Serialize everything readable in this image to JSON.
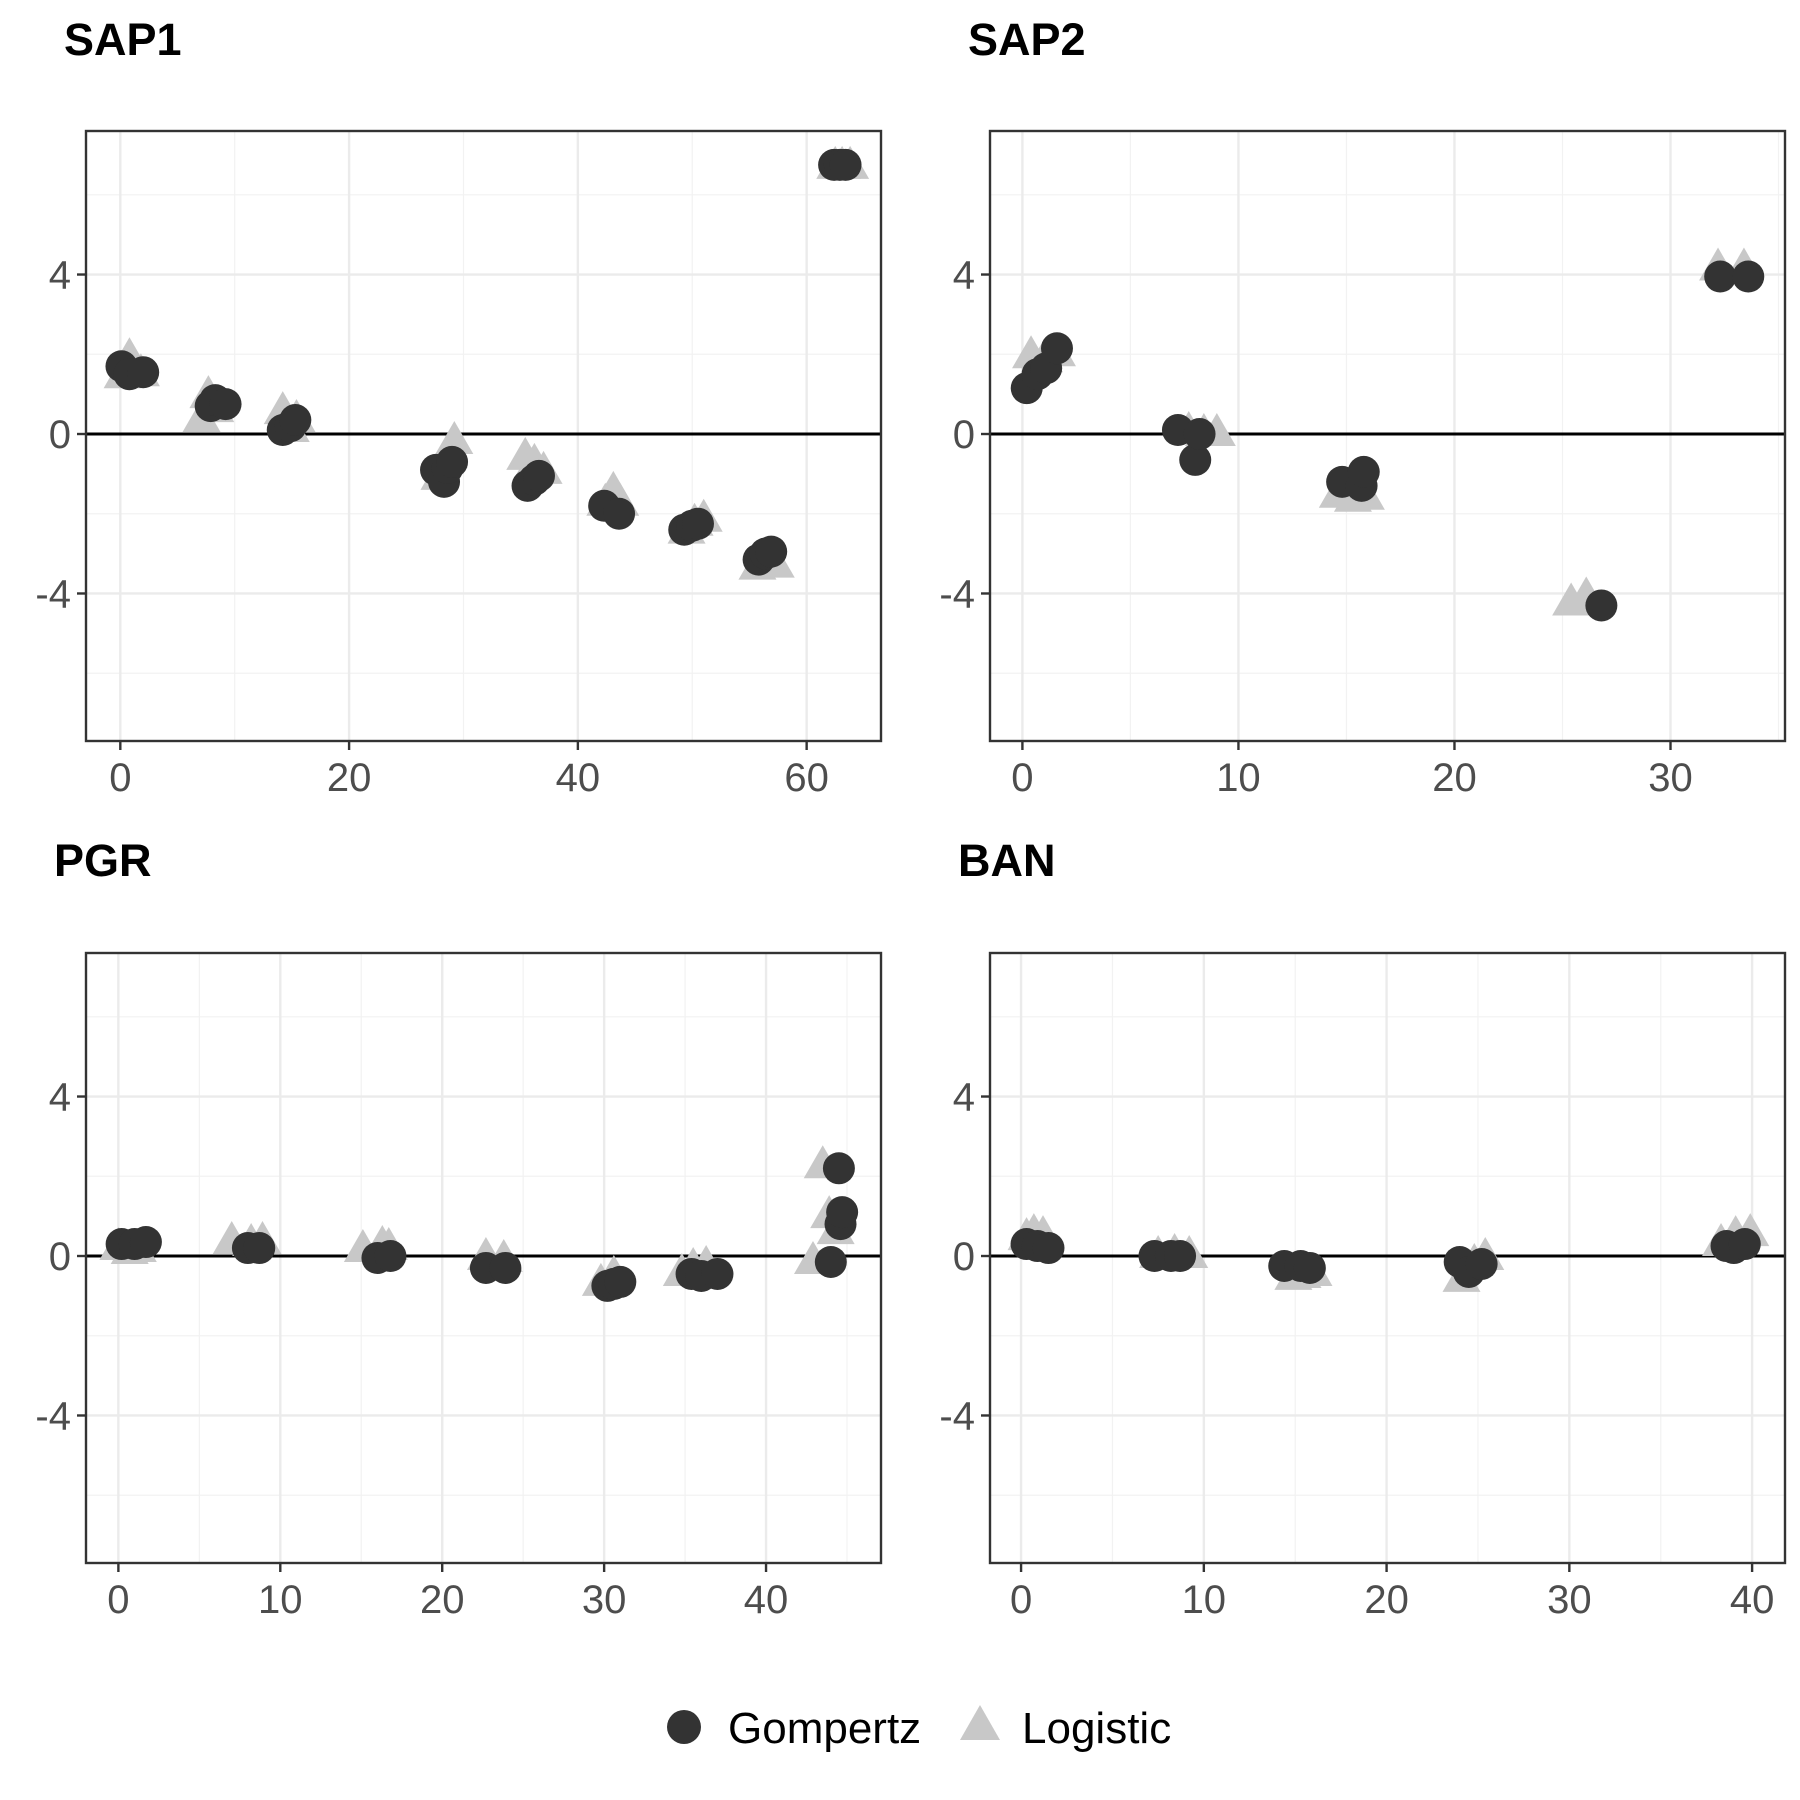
{
  "colors": {
    "Gompertz": "#333333",
    "Logistic": "#c8c8c8"
  },
  "legend": {
    "position": "bottom",
    "items": [
      {
        "label": "Gompertz",
        "shape": "circle"
      },
      {
        "label": "Logistic",
        "shape": "triangle"
      }
    ]
  },
  "chart_data": [
    {
      "type": "scatter",
      "title": "SAP1",
      "xlabel": "",
      "ylabel": "",
      "xlim": [
        -3,
        66.5
      ],
      "ylim": [
        -7.7,
        7.6
      ],
      "xticks": [
        0,
        20,
        40,
        60
      ],
      "yticks": [
        -4,
        0,
        4
      ],
      "reference_line": 0,
      "grid": true,
      "series": [
        {
          "name": "Gompertz",
          "points": [
            [
              0.1,
              1.7
            ],
            [
              0.8,
              1.5
            ],
            [
              2.0,
              1.55
            ],
            [
              7.9,
              0.7
            ],
            [
              8.3,
              0.85
            ],
            [
              9.2,
              0.75
            ],
            [
              14.2,
              0.1
            ],
            [
              14.9,
              0.2
            ],
            [
              15.3,
              0.35
            ],
            [
              27.6,
              -0.9
            ],
            [
              28.3,
              -1.2
            ],
            [
              28.6,
              -0.85
            ],
            [
              29.0,
              -0.7
            ],
            [
              35.6,
              -1.3
            ],
            [
              36.2,
              -1.15
            ],
            [
              36.6,
              -1.05
            ],
            [
              42.3,
              -1.8
            ],
            [
              43.6,
              -2.0
            ],
            [
              49.3,
              -2.4
            ],
            [
              50.0,
              -2.3
            ],
            [
              50.5,
              -2.25
            ],
            [
              55.8,
              -3.15
            ],
            [
              56.4,
              -3.0
            ],
            [
              56.9,
              -2.95
            ],
            [
              62.4,
              6.75
            ],
            [
              62.9,
              6.75
            ],
            [
              63.4,
              6.75
            ]
          ]
        },
        {
          "name": "Logistic",
          "points": [
            [
              0.2,
              1.45
            ],
            [
              0.8,
              1.9
            ],
            [
              1.8,
              1.5
            ],
            [
              7.1,
              0.35
            ],
            [
              7.7,
              0.95
            ],
            [
              8.3,
              0.6
            ],
            [
              14.2,
              0.55
            ],
            [
              14.9,
              0.1
            ],
            [
              15.4,
              0.35
            ],
            [
              27.9,
              -1.1
            ],
            [
              28.7,
              -0.55
            ],
            [
              29.2,
              -0.2
            ],
            [
              35.4,
              -0.6
            ],
            [
              36.2,
              -0.75
            ],
            [
              37.0,
              -0.95
            ],
            [
              42.4,
              -1.75
            ],
            [
              43.1,
              -1.45
            ],
            [
              43.7,
              -1.75
            ],
            [
              49.5,
              -2.45
            ],
            [
              50.2,
              -2.25
            ],
            [
              51.0,
              -2.15
            ],
            [
              55.7,
              -3.35
            ],
            [
              56.6,
              -3.15
            ],
            [
              57.3,
              -3.3
            ],
            [
              62.5,
              6.7
            ],
            [
              63.1,
              6.7
            ],
            [
              63.8,
              6.7
            ]
          ]
        }
      ]
    },
    {
      "type": "scatter",
      "title": "SAP2",
      "xlabel": "",
      "ylabel": "",
      "xlim": [
        -1.5,
        35.3
      ],
      "ylim": [
        -7.7,
        7.6
      ],
      "xticks": [
        0,
        10,
        20,
        30
      ],
      "yticks": [
        -4,
        0,
        4
      ],
      "reference_line": 0,
      "grid": true,
      "series": [
        {
          "name": "Gompertz",
          "points": [
            [
              0.2,
              1.15
            ],
            [
              0.7,
              1.5
            ],
            [
              1.1,
              1.65
            ],
            [
              1.6,
              2.15
            ],
            [
              7.2,
              0.1
            ],
            [
              8.0,
              -0.65
            ],
            [
              8.2,
              0.0
            ],
            [
              14.8,
              -1.2
            ],
            [
              15.7,
              -1.3
            ],
            [
              15.8,
              -0.95
            ],
            [
              26.8,
              -4.3
            ],
            [
              32.3,
              3.95
            ],
            [
              33.6,
              3.95
            ]
          ]
        },
        {
          "name": "Logistic",
          "points": [
            [
              0.4,
              1.95
            ],
            [
              1.0,
              1.85
            ],
            [
              1.6,
              2.0
            ],
            [
              7.7,
              0.05
            ],
            [
              8.4,
              0.0
            ],
            [
              9.0,
              0.0
            ],
            [
              14.6,
              -1.55
            ],
            [
              15.3,
              -1.65
            ],
            [
              15.9,
              -1.6
            ],
            [
              25.4,
              -4.25
            ],
            [
              26.1,
              -4.1
            ],
            [
              32.2,
              4.15
            ],
            [
              33.4,
              4.15
            ]
          ]
        }
      ]
    },
    {
      "type": "scatter",
      "title": "PGR",
      "xlabel": "",
      "ylabel": "",
      "xlim": [
        -2,
        47.1
      ],
      "ylim": [
        -7.7,
        7.6
      ],
      "xticks": [
        0,
        10,
        20,
        30,
        40
      ],
      "yticks": [
        -4,
        0,
        4
      ],
      "reference_line": 0,
      "grid": true,
      "series": [
        {
          "name": "Gompertz",
          "points": [
            [
              0.2,
              0.3
            ],
            [
              1.0,
              0.3
            ],
            [
              1.7,
              0.35
            ],
            [
              8.0,
              0.2
            ],
            [
              8.7,
              0.2
            ],
            [
              16.0,
              -0.05
            ],
            [
              16.8,
              0.0
            ],
            [
              22.7,
              -0.3
            ],
            [
              23.9,
              -0.3
            ],
            [
              30.2,
              -0.75
            ],
            [
              30.6,
              -0.7
            ],
            [
              31.0,
              -0.65
            ],
            [
              35.4,
              -0.45
            ],
            [
              36.0,
              -0.5
            ],
            [
              37.0,
              -0.45
            ],
            [
              44.0,
              -0.15
            ],
            [
              44.5,
              2.2
            ],
            [
              44.6,
              0.8
            ],
            [
              44.7,
              1.1
            ]
          ]
        },
        {
          "name": "Logistic",
          "points": [
            [
              0.0,
              0.2
            ],
            [
              0.7,
              0.1
            ],
            [
              1.2,
              0.15
            ],
            [
              7.0,
              0.35
            ],
            [
              8.2,
              0.3
            ],
            [
              8.9,
              0.35
            ],
            [
              15.1,
              0.15
            ],
            [
              16.3,
              0.25
            ],
            [
              16.7,
              0.2
            ],
            [
              22.7,
              -0.05
            ],
            [
              23.8,
              -0.1
            ],
            [
              29.8,
              -0.7
            ],
            [
              30.6,
              -0.5
            ],
            [
              34.8,
              -0.45
            ],
            [
              35.5,
              -0.3
            ],
            [
              36.3,
              -0.25
            ],
            [
              42.9,
              -0.15
            ],
            [
              43.5,
              2.25
            ],
            [
              43.9,
              1.0
            ],
            [
              44.3,
              0.6
            ]
          ]
        }
      ]
    },
    {
      "type": "scatter",
      "title": "BAN",
      "xlabel": "",
      "ylabel": "",
      "xlim": [
        -1.7,
        41.8
      ],
      "ylim": [
        -7.7,
        7.6
      ],
      "xticks": [
        0,
        10,
        20,
        30,
        40
      ],
      "yticks": [
        -4,
        0,
        4
      ],
      "reference_line": 0,
      "grid": true,
      "series": [
        {
          "name": "Gompertz",
          "points": [
            [
              0.3,
              0.3
            ],
            [
              0.9,
              0.25
            ],
            [
              1.5,
              0.2
            ],
            [
              7.3,
              0.0
            ],
            [
              8.2,
              0.0
            ],
            [
              8.7,
              0.0
            ],
            [
              14.4,
              -0.25
            ],
            [
              15.3,
              -0.25
            ],
            [
              15.8,
              -0.3
            ],
            [
              24.0,
              -0.15
            ],
            [
              24.5,
              -0.4
            ],
            [
              25.2,
              -0.2
            ],
            [
              38.6,
              0.25
            ],
            [
              39.0,
              0.2
            ],
            [
              39.6,
              0.3
            ]
          ]
        },
        {
          "name": "Logistic",
          "points": [
            [
              0.3,
              0.45
            ],
            [
              0.7,
              0.55
            ],
            [
              1.2,
              0.5
            ],
            [
              7.5,
              0.0
            ],
            [
              8.4,
              0.05
            ],
            [
              9.2,
              0.0
            ],
            [
              14.9,
              -0.55
            ],
            [
              15.4,
              -0.5
            ],
            [
              16.0,
              -0.45
            ],
            [
              24.1,
              -0.6
            ],
            [
              24.8,
              -0.2
            ],
            [
              25.4,
              -0.05
            ],
            [
              38.3,
              0.3
            ],
            [
              39.1,
              0.5
            ],
            [
              39.9,
              0.55
            ]
          ]
        }
      ]
    }
  ]
}
